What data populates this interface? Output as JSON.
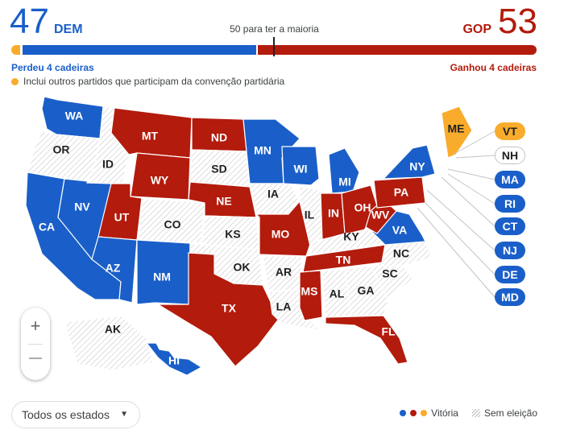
{
  "header": {
    "dem_count": "47",
    "dem_label": "DEM",
    "gop_count": "53",
    "gop_label": "GOP",
    "majority_label": "50 para ter a maioria",
    "dem_change": "Perdeu 4 cadeiras",
    "gop_change": "Ganhou 4 cadeiras",
    "other_note": "Inclui outros partidos que participam da convenção partidária"
  },
  "seat_bar": {
    "other": 2,
    "dem": 45,
    "gop": 53,
    "total": 100
  },
  "colors": {
    "dem": "#1a5fc9",
    "gop": "#b31b0c",
    "other": "#f9ab2b",
    "none": "#ffffff"
  },
  "map": {
    "states": [
      {
        "abbr": "WA",
        "party": "dem"
      },
      {
        "abbr": "OR",
        "party": "none"
      },
      {
        "abbr": "CA",
        "party": "dem"
      },
      {
        "abbr": "NV",
        "party": "dem"
      },
      {
        "abbr": "ID",
        "party": "none"
      },
      {
        "abbr": "MT",
        "party": "gop"
      },
      {
        "abbr": "WY",
        "party": "gop"
      },
      {
        "abbr": "UT",
        "party": "gop"
      },
      {
        "abbr": "AZ",
        "party": "dem"
      },
      {
        "abbr": "CO",
        "party": "none"
      },
      {
        "abbr": "NM",
        "party": "dem"
      },
      {
        "abbr": "ND",
        "party": "gop"
      },
      {
        "abbr": "SD",
        "party": "none"
      },
      {
        "abbr": "NE",
        "party": "gop"
      },
      {
        "abbr": "KS",
        "party": "none"
      },
      {
        "abbr": "OK",
        "party": "none"
      },
      {
        "abbr": "TX",
        "party": "gop"
      },
      {
        "abbr": "MN",
        "party": "dem"
      },
      {
        "abbr": "IA",
        "party": "none"
      },
      {
        "abbr": "MO",
        "party": "gop"
      },
      {
        "abbr": "AR",
        "party": "none"
      },
      {
        "abbr": "LA",
        "party": "none"
      },
      {
        "abbr": "WI",
        "party": "dem"
      },
      {
        "abbr": "IL",
        "party": "none"
      },
      {
        "abbr": "MI",
        "party": "dem"
      },
      {
        "abbr": "IN",
        "party": "gop"
      },
      {
        "abbr": "OH",
        "party": "gop"
      },
      {
        "abbr": "KY",
        "party": "none"
      },
      {
        "abbr": "TN",
        "party": "gop"
      },
      {
        "abbr": "MS",
        "party": "gop"
      },
      {
        "abbr": "AL",
        "party": "none"
      },
      {
        "abbr": "GA",
        "party": "none"
      },
      {
        "abbr": "FL",
        "party": "gop"
      },
      {
        "abbr": "SC",
        "party": "none"
      },
      {
        "abbr": "NC",
        "party": "none"
      },
      {
        "abbr": "VA",
        "party": "dem"
      },
      {
        "abbr": "WV",
        "party": "gop"
      },
      {
        "abbr": "PA",
        "party": "gop"
      },
      {
        "abbr": "NY",
        "party": "dem"
      },
      {
        "abbr": "ME",
        "party": "other"
      },
      {
        "abbr": "AK",
        "party": "none"
      },
      {
        "abbr": "HI",
        "party": "dem"
      }
    ],
    "small_states": [
      {
        "abbr": "VT",
        "party": "other"
      },
      {
        "abbr": "NH",
        "party": "none"
      },
      {
        "abbr": "MA",
        "party": "dem"
      },
      {
        "abbr": "RI",
        "party": "dem"
      },
      {
        "abbr": "CT",
        "party": "dem"
      },
      {
        "abbr": "NJ",
        "party": "dem"
      },
      {
        "abbr": "DE",
        "party": "dem"
      },
      {
        "abbr": "MD",
        "party": "dem"
      }
    ]
  },
  "controls": {
    "zoom_in": "+",
    "zoom_out": "—",
    "state_filter": "Todos os estados"
  },
  "legend": {
    "victory": "Vitória",
    "no_election": "Sem eleição"
  }
}
